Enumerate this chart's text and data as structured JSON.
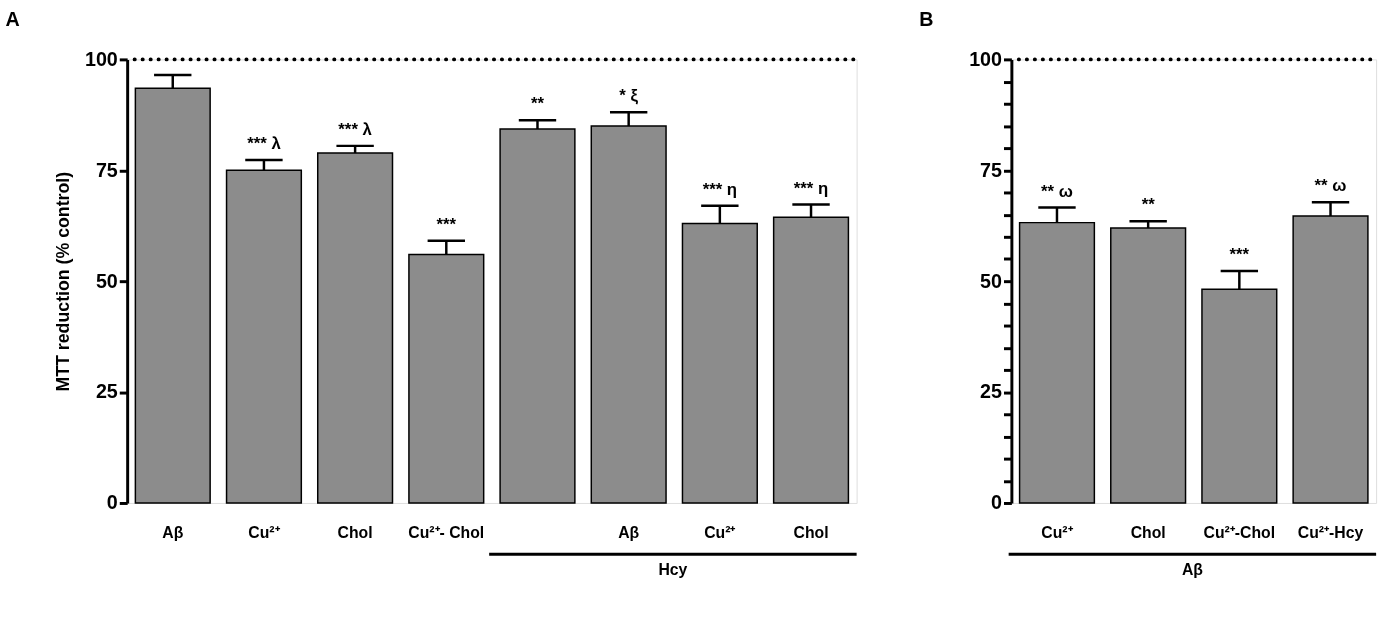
{
  "chart_data": [
    {
      "type": "bar",
      "title": "A",
      "ylabel": "MTT reduction (% control)",
      "categories": [
        "Aβ",
        "Cu²⁺",
        "Chol",
        "Cu²⁺- Chol",
        null,
        "Aβ",
        "Cu²⁺",
        "Chol"
      ],
      "values": [
        93.5,
        75.0,
        78.9,
        56.0,
        84.3,
        85.0,
        63.0,
        64.4
      ],
      "errors": [
        [
          93.5,
          96.5
        ],
        [
          75.0,
          77.3
        ],
        [
          78.9,
          80.5
        ],
        [
          56.0,
          59.1
        ],
        [
          84.3,
          86.3
        ],
        [
          85.0,
          88.1
        ],
        [
          63.0,
          67.0
        ],
        [
          64.4,
          67.3
        ]
      ],
      "value_labels": [
        null,
        "*** λ",
        "*** λ",
        "***",
        "**",
        "* ξ",
        "*** η",
        "*** η"
      ],
      "color": "#8c8c8c",
      "ylim": [
        0,
        100
      ],
      "yticks": [
        0,
        25,
        50,
        75,
        100
      ],
      "ref_lines": [
        {
          "axis": "y",
          "value": 100,
          "color": "#000000",
          "line_style": "dotted"
        }
      ],
      "annotations": [
        "Hcy"
      ],
      "grid": false
    },
    {
      "type": "bar",
      "title": "B",
      "categories": [
        "Cu²⁺",
        "Chol",
        "Cu²⁺-Chol",
        "Cu²⁺-Hcy"
      ],
      "values": [
        63.2,
        62.0,
        48.2,
        64.7
      ],
      "errors": [
        [
          63.2,
          66.6
        ],
        [
          62.0,
          63.5
        ],
        [
          48.2,
          52.3
        ],
        [
          64.7,
          67.8
        ]
      ],
      "value_labels": [
        "** ω",
        "**",
        "***",
        "** ω"
      ],
      "color": "#8c8c8c",
      "ylim": [
        0,
        100
      ],
      "yticks": [
        0,
        {
          "value": 5,
          "label": null
        },
        {
          "value": 10,
          "label": null
        },
        {
          "value": 15,
          "label": null
        },
        {
          "value": 20,
          "label": null
        },
        25,
        {
          "value": 30,
          "label": null
        },
        {
          "value": 35,
          "label": null
        },
        {
          "value": 40,
          "label": null
        },
        {
          "value": 45,
          "label": null
        },
        50,
        {
          "value": 55,
          "label": null
        },
        {
          "value": 60,
          "label": null
        },
        {
          "value": 65,
          "label": null
        },
        {
          "value": 70,
          "label": null
        },
        75,
        {
          "value": 80,
          "label": null
        },
        {
          "value": 85,
          "label": null
        },
        {
          "value": 90,
          "label": null
        },
        {
          "value": 95,
          "label": null
        },
        100
      ],
      "ref_lines": [
        {
          "axis": "y",
          "value": 100,
          "color": "#000000",
          "line_style": "dotted"
        }
      ],
      "annotations": [
        "Aβ"
      ],
      "grid": false
    }
  ]
}
